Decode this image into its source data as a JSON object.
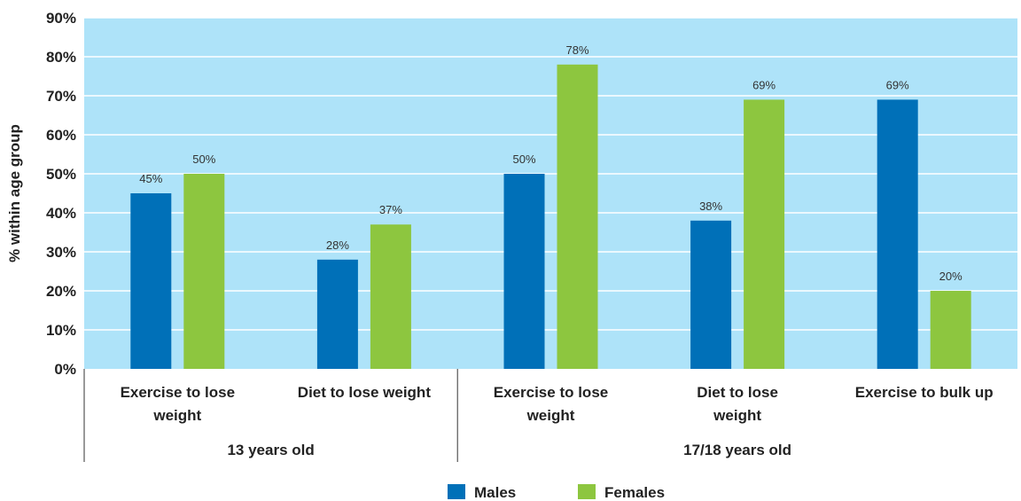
{
  "chart_data": {
    "type": "bar",
    "ylabel": "% within age group",
    "ylim": [
      0,
      90
    ],
    "yticks": [
      "0%",
      "10%",
      "20%",
      "30%",
      "40%",
      "50%",
      "60%",
      "70%",
      "80%",
      "90%"
    ],
    "grid": true,
    "legend_position": "bottom",
    "categories": [
      [
        "Exercise to lose",
        "weight"
      ],
      [
        "Diet to lose weight"
      ],
      [
        "Exercise to lose",
        "weight"
      ],
      [
        "Diet to lose",
        "weight"
      ],
      [
        "Exercise to bulk up"
      ]
    ],
    "groups": [
      {
        "label": "13 years old",
        "categories": [
          0,
          1
        ]
      },
      {
        "label": "17/18 years old",
        "categories": [
          2,
          3,
          4
        ]
      }
    ],
    "series": [
      {
        "name": "Males",
        "color": "#0070b8",
        "values": [
          45,
          28,
          50,
          38,
          69
        ],
        "labels": [
          "45%",
          "28%",
          "50%",
          "38%",
          "69%"
        ]
      },
      {
        "name": "Females",
        "color": "#8dc63f",
        "values": [
          50,
          37,
          78,
          69,
          20
        ],
        "labels": [
          "50%",
          "37%",
          "78%",
          "69%",
          "20%"
        ]
      }
    ],
    "plot_background": "#aee3f9",
    "gridline_color": "#ffffff"
  }
}
